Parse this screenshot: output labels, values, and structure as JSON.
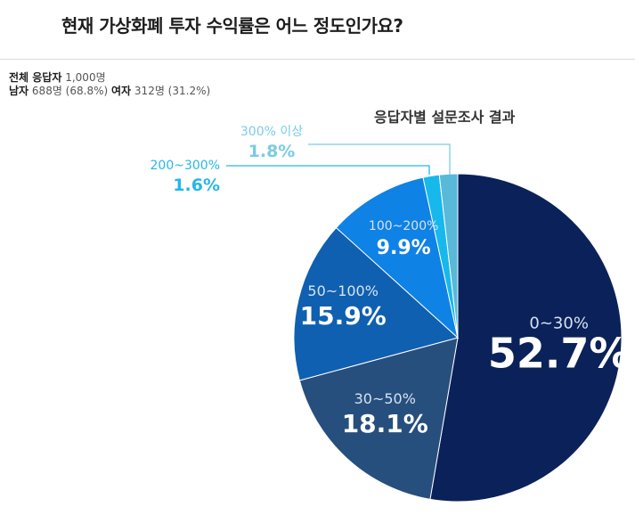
{
  "header": {
    "title": "현재 가상화폐 투자 수익률은 어느 정도인가요?"
  },
  "respondents": {
    "total_label": "전체 응답자",
    "total_value": "1,000명",
    "male_label": "남자",
    "male_value": "688명 (68.8%)",
    "female_label": "여자",
    "female_value": "312명 (31.2%)"
  },
  "chart_data": {
    "type": "pie",
    "title": "응답자별 설문조사 결과",
    "slices": [
      {
        "label": "0~30%",
        "value": 52.7,
        "display": "52.7%",
        "color": "#0b2159"
      },
      {
        "label": "30~50%",
        "value": 18.1,
        "display": "18.1%",
        "color": "#264f7d"
      },
      {
        "label": "50~100%",
        "value": 15.9,
        "display": "15.9%",
        "color": "#0f60b0"
      },
      {
        "label": "100~200%",
        "value": 9.9,
        "display": "9.9%",
        "color": "#0f82e6"
      },
      {
        "label": "200~300%",
        "value": 1.6,
        "display": "1.6%",
        "color": "#17b8ec"
      },
      {
        "label": "300% 이상",
        "value": 1.8,
        "display": "1.8%",
        "color": "#58b9d9"
      }
    ]
  }
}
